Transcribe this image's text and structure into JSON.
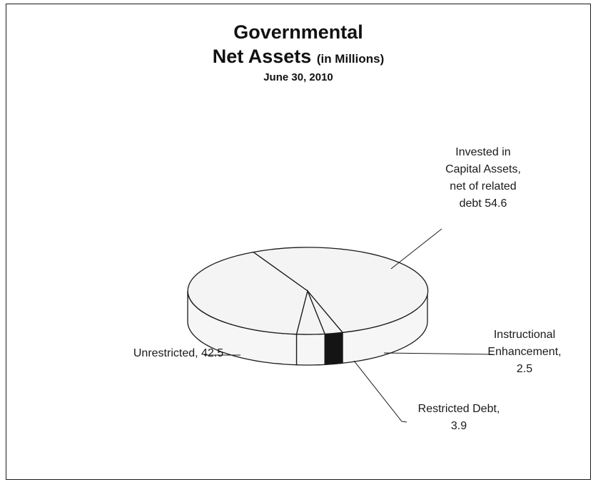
{
  "chart_data": {
    "type": "pie",
    "title_line1": "Governmental",
    "title_line2": "Net Assets",
    "title_unit": "(in Millions)",
    "subtitle": "June 30, 2010",
    "slices": [
      {
        "name": "Invested in Capital Assets, net of related debt",
        "value": 54.6,
        "label_lines": [
          "Invested in",
          "Capital Assets,",
          "net of related",
          "debt 54.6"
        ]
      },
      {
        "name": "Instructional Enhancement",
        "value": 2.5,
        "label_lines": [
          "Instructional",
          "Enhancement,",
          "2.5"
        ]
      },
      {
        "name": "Restricted Debt",
        "value": 3.9,
        "label_lines": [
          "Restricted Debt,",
          "3.9"
        ]
      },
      {
        "name": "Unrestricted",
        "value": 42.5,
        "label_lines": [
          "Unrestricted, 42.5"
        ]
      }
    ],
    "colors": {
      "face": "#f4f4f4",
      "side": "#f6f6f6",
      "dark": "#141414",
      "line": "#1a1a1a"
    }
  }
}
